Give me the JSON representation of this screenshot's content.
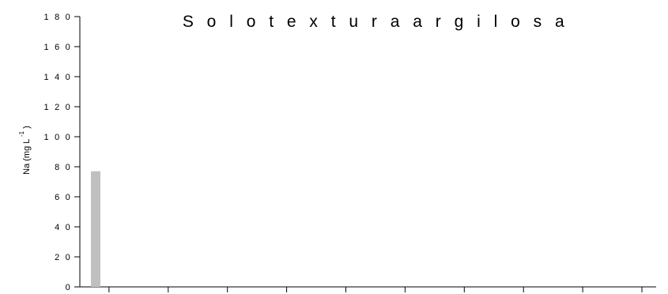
{
  "chart_data": {
    "type": "bar",
    "title": "S o l o  t e x t u r a  a r g i l o s a",
    "ylabel": "Na (mg L",
    "ylabel_sup": "-1",
    "ylabel_close": ")",
    "xlabel": "",
    "ylim": [
      0,
      180
    ],
    "y_ticks": [
      "0",
      "2 0",
      "4 0",
      "6 0",
      "8 0",
      "1 0 0",
      "1 2 0",
      "1 4 0",
      "1 6 0",
      "1 8 0"
    ],
    "y_tick_values": [
      0,
      20,
      40,
      60,
      80,
      100,
      120,
      140,
      160,
      180
    ],
    "categories": [
      "",
      "",
      "",
      "",
      "",
      "",
      "",
      "",
      "",
      ""
    ],
    "values": [
      77,
      0,
      0,
      0,
      0,
      0,
      0,
      0,
      0,
      0
    ],
    "bar_color": "#c0c0c0",
    "grid": false
  }
}
